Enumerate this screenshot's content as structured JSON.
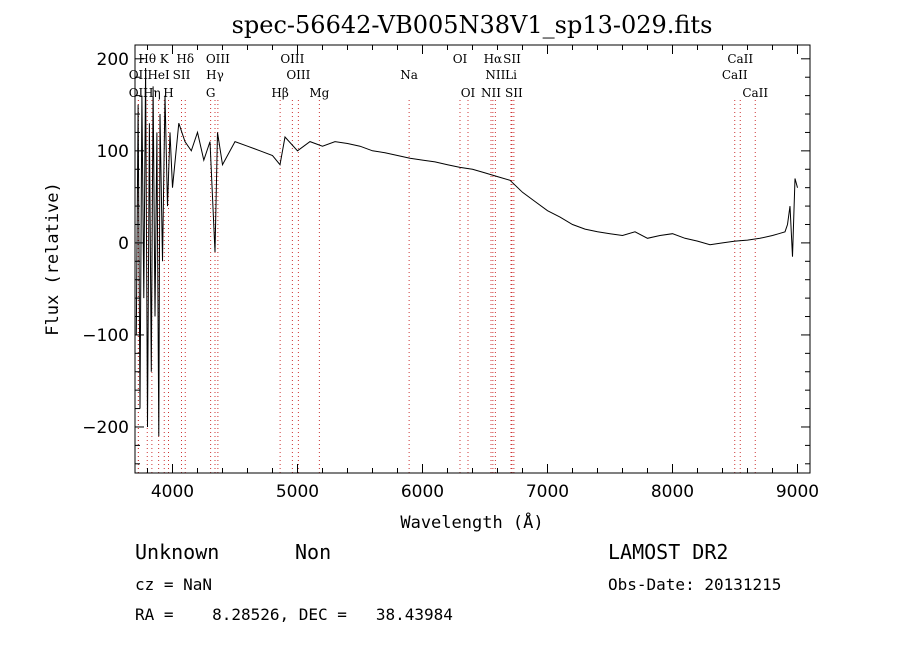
{
  "chart_data": {
    "type": "line",
    "title": "spec-56642-VB005N38V1_sp13-029.fits",
    "xlabel": "Wavelength (Å)",
    "ylabel": "Flux (relative)",
    "xlim": [
      3700,
      9100
    ],
    "ylim": [
      -250,
      215
    ],
    "xticks": [
      4000,
      5000,
      6000,
      7000,
      8000,
      9000
    ],
    "xtick_labels": [
      "4000",
      "5000",
      "6000",
      "7000",
      "8000",
      "9000"
    ],
    "yticks": [
      -200,
      -100,
      0,
      100,
      200
    ],
    "ytick_labels": [
      "−200",
      "−100",
      "0",
      "100",
      "200"
    ],
    "grid": false,
    "series": [
      {
        "x": [
          3710,
          3725,
          3740,
          3755,
          3770,
          3785,
          3800,
          3815,
          3830,
          3845,
          3860,
          3875,
          3890,
          3900,
          3920,
          3940,
          3960,
          3980,
          4000,
          4050,
          4100,
          4150,
          4200,
          4250,
          4300,
          4340,
          4360,
          4400,
          4500,
          4600,
          4700,
          4800,
          4860,
          4900,
          5000,
          5100,
          5200,
          5300,
          5400,
          5500,
          5600,
          5700,
          5800,
          5900,
          6000,
          6100,
          6200,
          6300,
          6400,
          6500,
          6600,
          6700,
          6800,
          6900,
          7000,
          7100,
          7200,
          7300,
          7400,
          7500,
          7600,
          7700,
          7800,
          7900,
          8000,
          8100,
          8200,
          8300,
          8400,
          8500,
          8600,
          8700,
          8800,
          8850,
          8900,
          8920,
          8940,
          8960,
          8980,
          9000
        ],
        "y": [
          -100,
          150,
          -180,
          160,
          -60,
          190,
          -200,
          130,
          -140,
          170,
          -80,
          120,
          -210,
          140,
          -20,
          160,
          40,
          120,
          60,
          130,
          110,
          100,
          120,
          90,
          110,
          -10,
          120,
          85,
          110,
          105,
          100,
          95,
          85,
          115,
          100,
          110,
          105,
          110,
          108,
          105,
          100,
          98,
          95,
          92,
          90,
          88,
          85,
          82,
          80,
          76,
          72,
          68,
          55,
          45,
          35,
          28,
          20,
          15,
          12,
          10,
          8,
          12,
          5,
          8,
          10,
          5,
          2,
          -2,
          0,
          2,
          3,
          5,
          8,
          10,
          12,
          20,
          40,
          -15,
          70,
          60
        ]
      }
    ],
    "lines": [
      {
        "name": "OII",
        "x": 3727,
        "row": 1
      },
      {
        "name": "Hθ",
        "x": 3798,
        "row": 0
      },
      {
        "name": "K",
        "x": 3934,
        "row": 0
      },
      {
        "name": "Hδ",
        "x": 4102,
        "row": 0
      },
      {
        "name": "OIII",
        "x": 4363,
        "row": 0
      },
      {
        "name": "OIII",
        "x": 4959,
        "row": 0
      },
      {
        "name": "OIII",
        "x": 5007,
        "row": 1
      },
      {
        "name": "OI",
        "x": 6300,
        "row": 0
      },
      {
        "name": "Hα",
        "x": 6563,
        "row": 0
      },
      {
        "name": "SII",
        "x": 6716,
        "row": 0
      },
      {
        "name": "CaII",
        "x": 8542,
        "row": 0
      },
      {
        "name": "CaII",
        "x": 8498,
        "row": 1
      },
      {
        "name": "CaII",
        "x": 8662,
        "row": 2
      },
      {
        "name": "OII",
        "x": 3727,
        "row": 2
      },
      {
        "name": "HeI",
        "x": 3889,
        "row": 1
      },
      {
        "name": "SII",
        "x": 4072,
        "row": 1
      },
      {
        "name": "Hη",
        "x": 3835,
        "row": 2
      },
      {
        "name": "H",
        "x": 3968,
        "row": 2
      },
      {
        "name": "Hγ",
        "x": 4340,
        "row": 1
      },
      {
        "name": "G",
        "x": 4305,
        "row": 2
      },
      {
        "name": "Hβ",
        "x": 4861,
        "row": 2
      },
      {
        "name": "Mg",
        "x": 5175,
        "row": 2
      },
      {
        "name": "Na",
        "x": 5893,
        "row": 1
      },
      {
        "name": "OI",
        "x": 6364,
        "row": 2
      },
      {
        "name": "NII",
        "x": 6583,
        "row": 1
      },
      {
        "name": "Li",
        "x": 6708,
        "row": 1
      },
      {
        "name": "NII",
        "x": 6548,
        "row": 2
      },
      {
        "name": "SII",
        "x": 6731,
        "row": 2
      }
    ]
  },
  "info": {
    "class": "Unknown",
    "subclass": "Non",
    "survey": "LAMOST DR2",
    "cz": "cz = NaN",
    "obs_date": "Obs-Date: 20131215",
    "radec": "RA =    8.28526, DEC =   38.43984"
  }
}
